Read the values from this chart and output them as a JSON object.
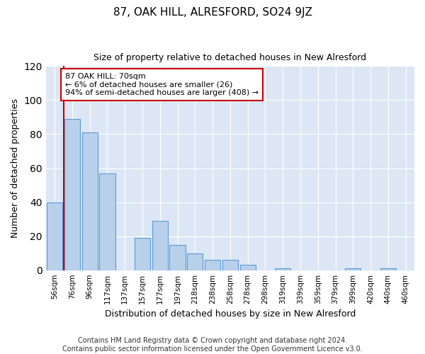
{
  "title": "87, OAK HILL, ALRESFORD, SO24 9JZ",
  "subtitle": "Size of property relative to detached houses in New Alresford",
  "xlabel": "Distribution of detached houses by size in New Alresford",
  "ylabel": "Number of detached properties",
  "bar_labels": [
    "56sqm",
    "76sqm",
    "96sqm",
    "117sqm",
    "137sqm",
    "157sqm",
    "177sqm",
    "197sqm",
    "218sqm",
    "238sqm",
    "258sqm",
    "278sqm",
    "298sqm",
    "319sqm",
    "339sqm",
    "359sqm",
    "379sqm",
    "399sqm",
    "420sqm",
    "440sqm",
    "460sqm"
  ],
  "bar_values": [
    40,
    89,
    81,
    57,
    0,
    19,
    29,
    15,
    10,
    6,
    6,
    3,
    0,
    1,
    0,
    0,
    0,
    1,
    0,
    1,
    0
  ],
  "bar_color": "#b8d0ea",
  "bar_edge_color": "#5b9bd5",
  "vline_color": "#cc0000",
  "annotation_text": "87 OAK HILL: 70sqm\n← 6% of detached houses are smaller (26)\n94% of semi-detached houses are larger (408) →",
  "annotation_box_color": "#ffffff",
  "annotation_box_edge_color": "#cc0000",
  "ylim": [
    0,
    120
  ],
  "yticks": [
    0,
    20,
    40,
    60,
    80,
    100,
    120
  ],
  "footer_line1": "Contains HM Land Registry data © Crown copyright and database right 2024.",
  "footer_line2": "Contains public sector information licensed under the Open Government Licence v3.0.",
  "fig_bg_color": "#ffffff",
  "plot_bg_color": "#dce6f5",
  "title_fontsize": 11,
  "subtitle_fontsize": 9,
  "axis_label_fontsize": 9,
  "tick_fontsize": 7.5,
  "footer_fontsize": 7,
  "annotation_fontsize": 8
}
